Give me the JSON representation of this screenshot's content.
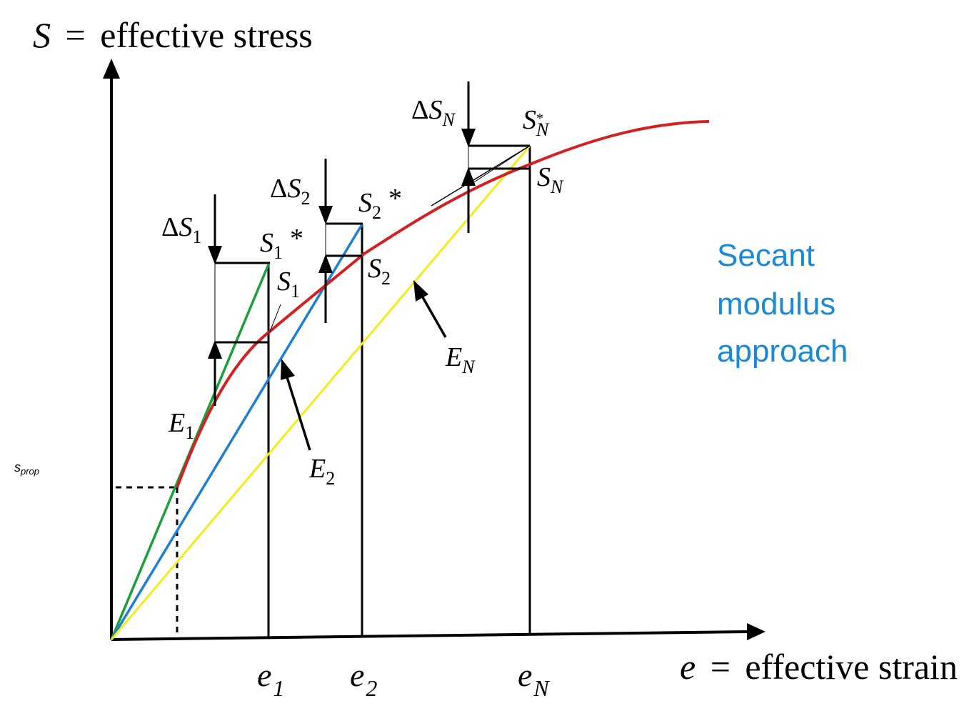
{
  "axes": {
    "y_title": {
      "symbol": "S",
      "eq": "=",
      "rest": "effective stress"
    },
    "x_title": {
      "symbol": "e",
      "eq": "=",
      "rest": "effective strain"
    }
  },
  "x_ticks": [
    {
      "main": "e",
      "sub": "1"
    },
    {
      "main": "e",
      "sub": "2"
    },
    {
      "main": "e",
      "sub": "N"
    }
  ],
  "s_prop": {
    "main": "s",
    "sub": "prop"
  },
  "labels": {
    "delta_s1": {
      "delta": "Δ",
      "main": "S",
      "sub": "1"
    },
    "delta_s2": {
      "delta": "Δ",
      "main": "S",
      "sub": "2"
    },
    "delta_sn": {
      "delta": "Δ",
      "main": "S",
      "sub": "N"
    },
    "s1_star": {
      "main": "S",
      "sub": "1",
      "star": "*"
    },
    "s2_star": {
      "main": "S",
      "sub": "2",
      "star": "*"
    },
    "sn_star": {
      "main": "S",
      "sub": "N",
      "star": "*"
    },
    "s1": {
      "main": "S",
      "sub": "1"
    },
    "s2": {
      "main": "S",
      "sub": "2"
    },
    "sn": {
      "main": "S",
      "sub": "N"
    },
    "e1_mod": {
      "main": "E",
      "sub": "1"
    },
    "e2_mod": {
      "main": "E",
      "sub": "2"
    },
    "en_mod": {
      "main": "E",
      "sub": "N"
    }
  },
  "note": {
    "lines": [
      "Secant",
      "modulus",
      "approach"
    ],
    "color": "#1a8ad6"
  },
  "colors": {
    "curve": "#d42020",
    "e1_line": "#1aa03c",
    "e2_line": "#1f7fd0",
    "en_line": "#f2ee1a",
    "axis": "#000000"
  }
}
